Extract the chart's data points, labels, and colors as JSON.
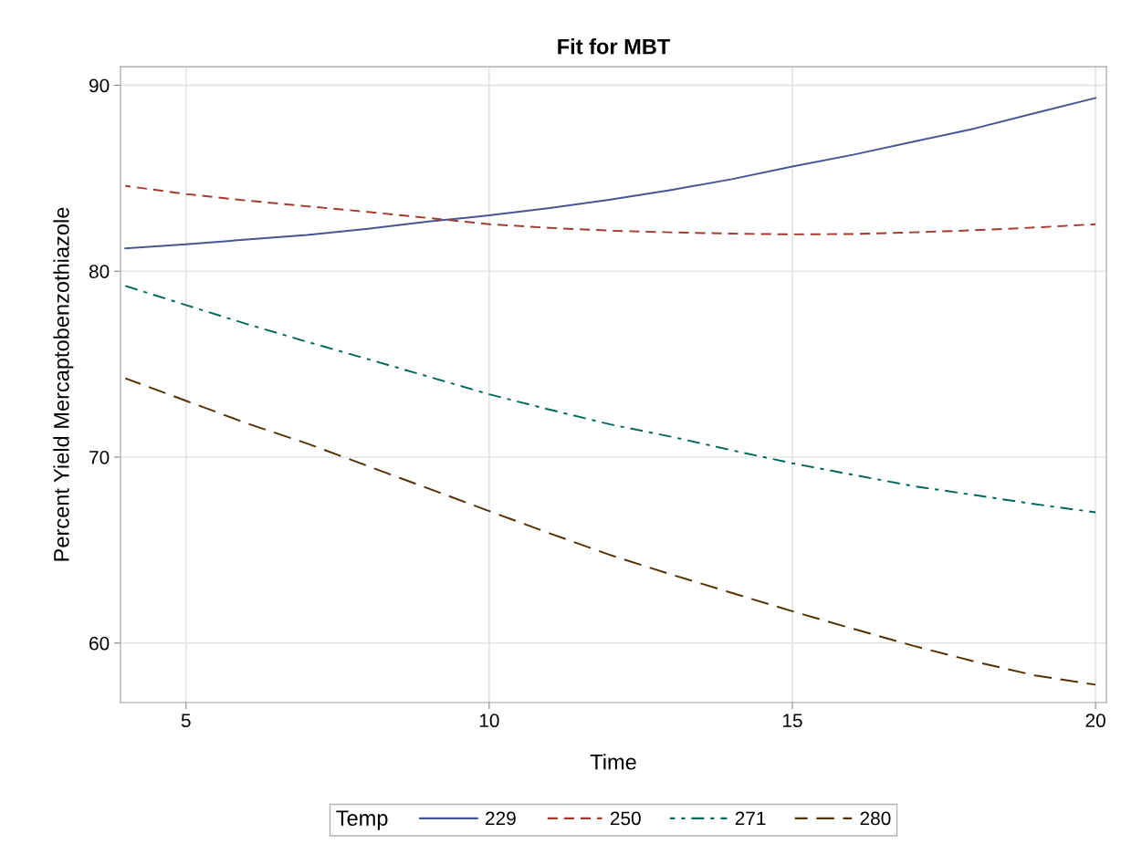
{
  "chart_data": {
    "type": "line",
    "title": "Fit for MBT",
    "xlabel": "Time",
    "ylabel": "Percent Yield Mercaptobenzothiazole",
    "legend_title": "Temp",
    "x": [
      4,
      5,
      6,
      7,
      8,
      9,
      10,
      11,
      12,
      13,
      14,
      15,
      16,
      17,
      18,
      19,
      20
    ],
    "series": [
      {
        "name": "229",
        "color": "#445694",
        "line_style": "solid",
        "values": [
          81.23,
          81.45,
          81.7,
          81.95,
          82.28,
          82.67,
          83.0,
          83.4,
          83.85,
          84.37,
          84.95,
          85.63,
          86.26,
          86.97,
          87.67,
          88.5,
          89.32
        ]
      },
      {
        "name": "250",
        "color": "#a23a2e",
        "line_style": "dashed",
        "values": [
          84.59,
          84.15,
          83.8,
          83.49,
          83.19,
          82.86,
          82.53,
          82.33,
          82.18,
          82.09,
          82.02,
          81.98,
          82.0,
          82.09,
          82.2,
          82.35,
          82.53
        ]
      },
      {
        "name": "271",
        "color": "#01665e",
        "line_style": "dashdot",
        "values": [
          79.21,
          78.18,
          77.16,
          76.2,
          75.27,
          74.33,
          73.38,
          72.55,
          71.76,
          71.1,
          70.37,
          69.67,
          69.05,
          68.44,
          67.96,
          67.47,
          67.03
        ]
      },
      {
        "name": "280",
        "color": "#543005",
        "line_style": "longdash",
        "values": [
          74.24,
          73.03,
          71.82,
          70.73,
          69.52,
          68.31,
          67.1,
          65.9,
          64.73,
          63.69,
          62.7,
          61.71,
          60.77,
          59.85,
          59.01,
          58.26,
          57.76
        ]
      }
    ],
    "xlim": [
      3.92,
      20.18
    ],
    "ylim": [
      56.8,
      91.0
    ],
    "xticks": [
      5,
      10,
      15,
      20
    ],
    "yticks": [
      60,
      70,
      80,
      90
    ],
    "grid": true,
    "legend": "bottom"
  }
}
